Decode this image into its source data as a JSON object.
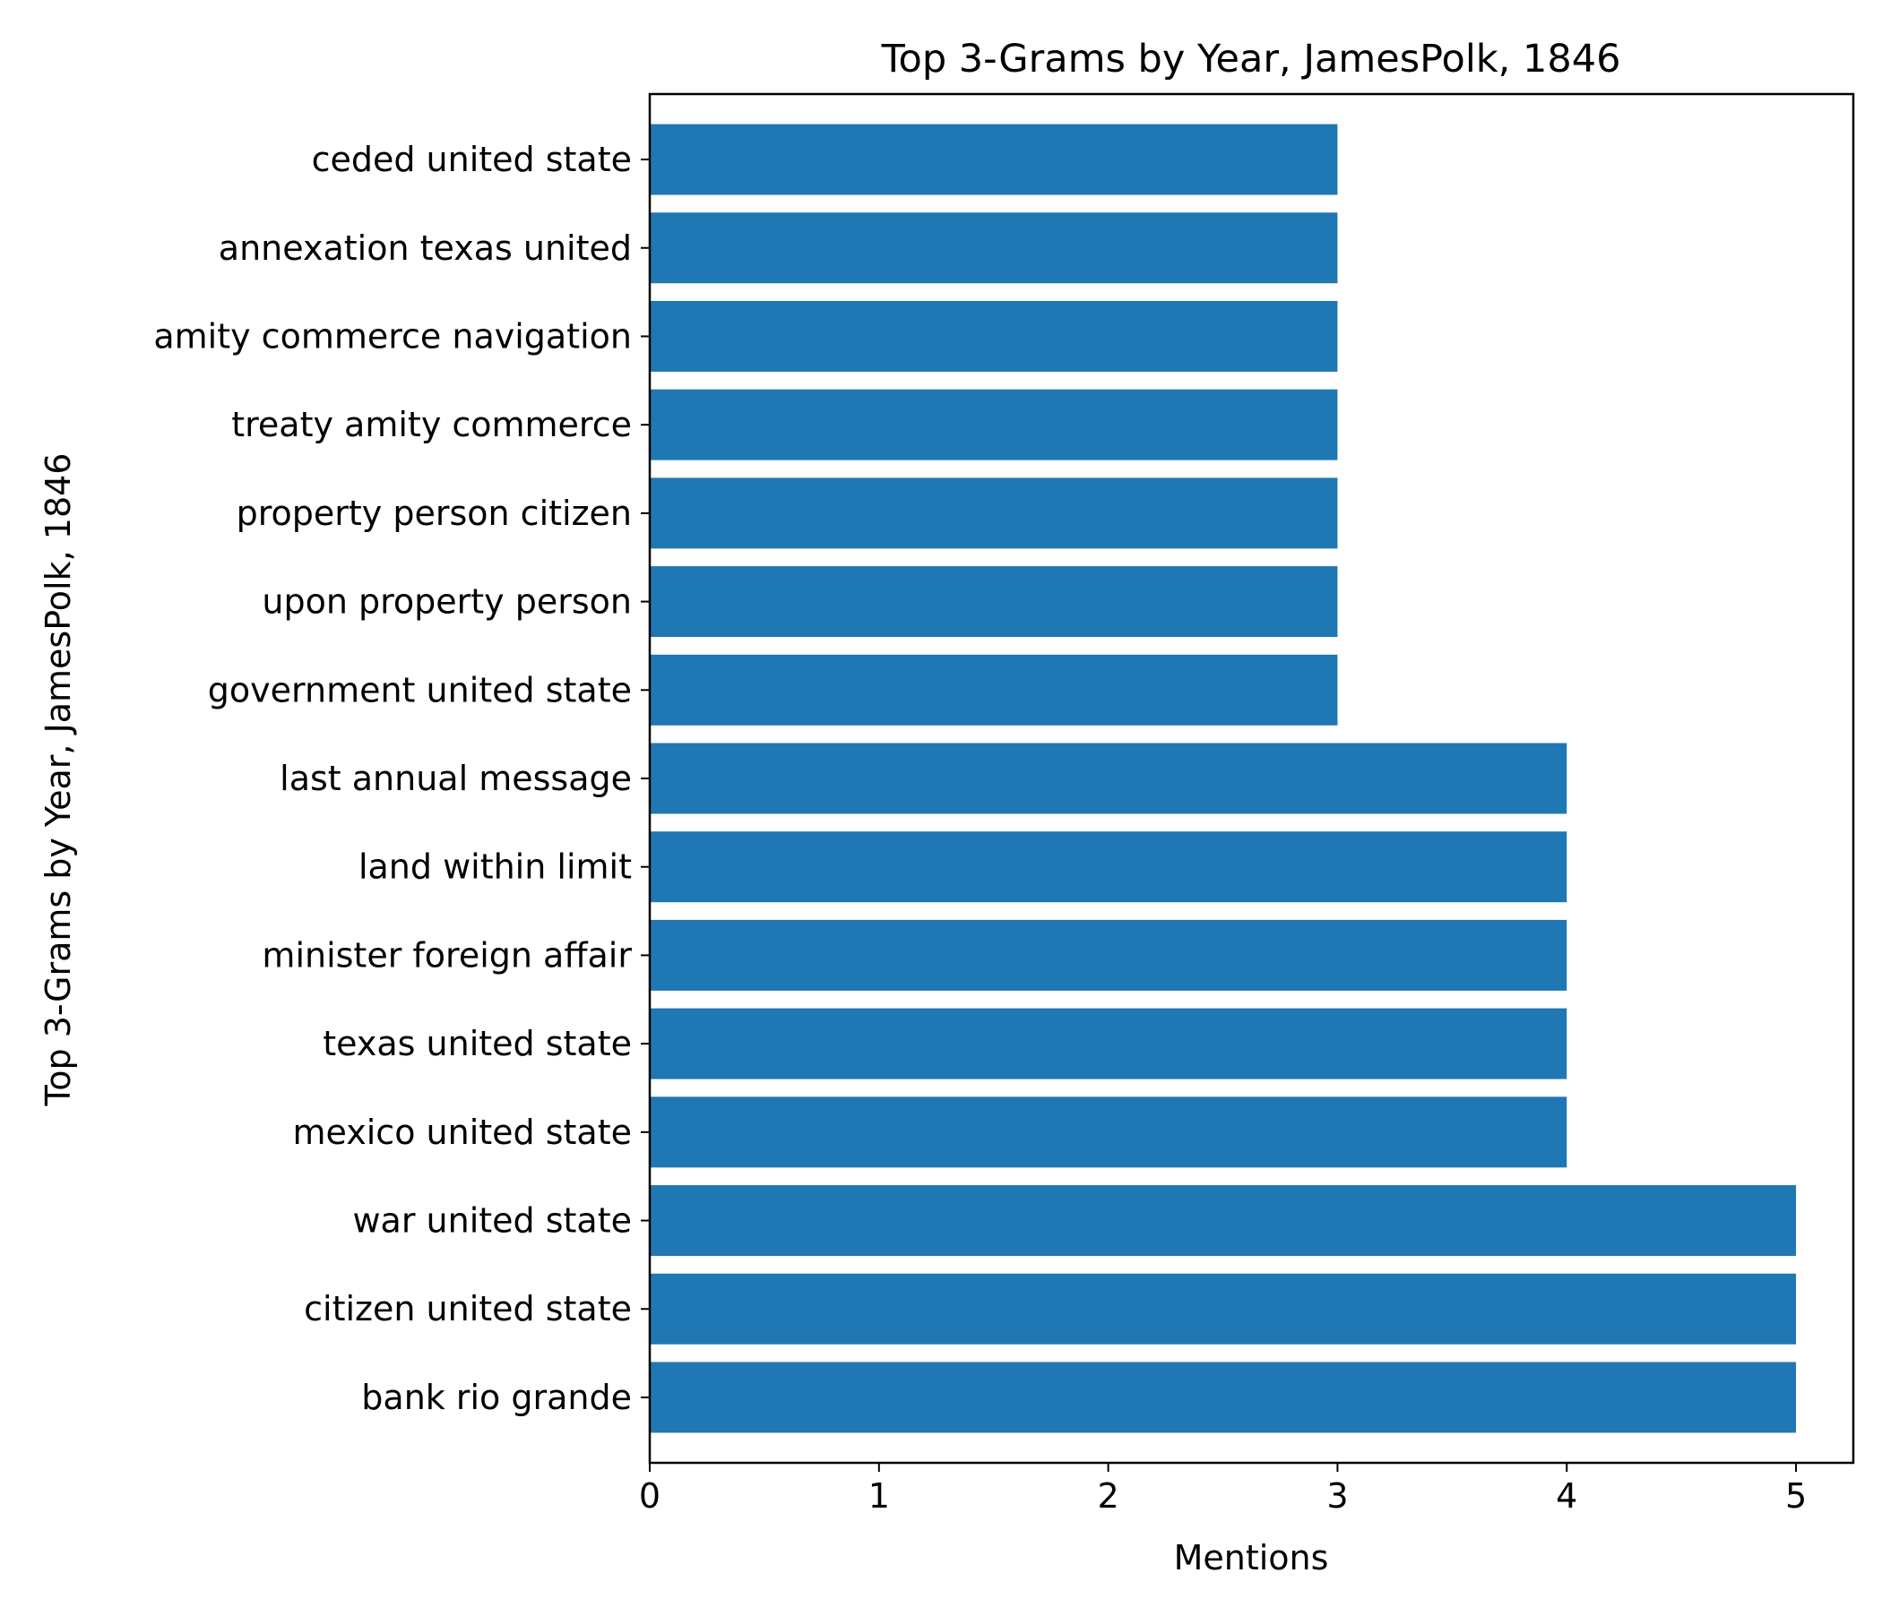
{
  "chart_data": {
    "type": "bar",
    "orientation": "horizontal",
    "title": "Top 3-Grams by Year, JamesPolk, 1846",
    "xlabel": "Mentions",
    "ylabel": "Top 3-Grams by Year, JamesPolk, 1846",
    "categories": [
      "bank rio grande",
      "citizen united state",
      "war united state",
      "mexico united state",
      "texas united state",
      "minister foreign affair",
      "land within limit",
      "last annual message",
      "government united state",
      "upon property person",
      "property person citizen",
      "treaty amity commerce",
      "amity commerce navigation",
      "annexation texas united",
      "ceded united state"
    ],
    "values": [
      5,
      5,
      5,
      4,
      4,
      4,
      4,
      4,
      3,
      3,
      3,
      3,
      3,
      3,
      3
    ],
    "xlim": [
      0,
      5.25
    ],
    "xticks": [
      "0",
      "1",
      "2",
      "3",
      "4",
      "5"
    ],
    "grid": false,
    "legend": "none",
    "bar_color": "#1f77b4"
  }
}
